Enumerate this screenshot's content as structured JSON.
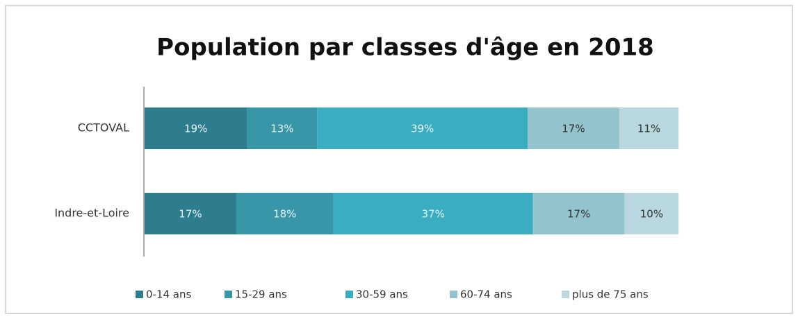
{
  "chart_data": {
    "type": "stacked-bar-horizontal",
    "title": "Population par classes d'âge en 2018",
    "categories": [
      "CCTOVAL",
      "Indre-et-Loire"
    ],
    "xlim": [
      0,
      100
    ],
    "series": [
      {
        "name": "0-14 ans",
        "color": "#2e7d8e",
        "values": [
          19,
          17
        ],
        "value_labels": [
          "19%",
          "17%"
        ]
      },
      {
        "name": "15-29 ans",
        "color": "#3896a8",
        "values": [
          13,
          18
        ],
        "value_labels": [
          "13%",
          "18%"
        ]
      },
      {
        "name": "30-59 ans",
        "color": "#3badc1",
        "values": [
          39,
          37
        ],
        "value_labels": [
          "39%",
          "37%"
        ]
      },
      {
        "name": "60-74 ans",
        "color": "#93c3cc",
        "values": [
          17,
          17
        ],
        "value_labels": [
          "17%",
          "17%"
        ]
      },
      {
        "name": "plus de 75 ans",
        "color": "#b9d7de",
        "values": [
          11,
          10
        ],
        "value_labels": [
          "11%",
          "10%"
        ]
      }
    ],
    "legend": "bottom"
  }
}
